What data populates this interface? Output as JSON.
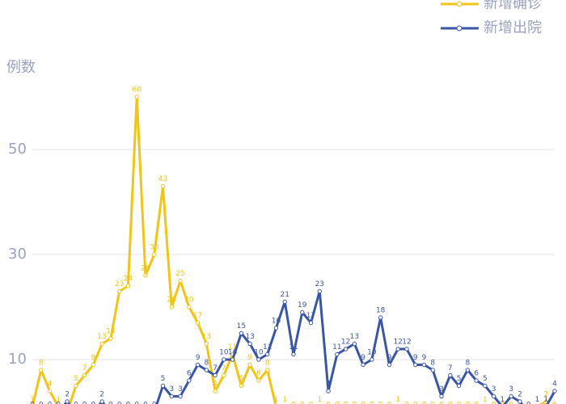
{
  "chart_data": {
    "type": "line",
    "y_label": "例数",
    "categories": [
      null,
      null,
      null,
      null,
      null,
      null,
      null,
      null,
      null,
      null,
      null,
      null,
      null,
      null,
      null,
      null,
      null,
      null,
      null,
      null,
      null,
      null,
      null,
      null,
      null,
      null,
      null,
      null,
      null,
      null,
      null,
      null,
      null,
      null,
      null,
      null,
      null,
      null,
      null,
      null,
      null,
      null,
      null,
      null,
      null,
      null,
      null,
      null,
      null,
      null,
      null,
      null,
      null,
      null,
      null,
      null,
      null,
      null,
      null,
      null,
      null
    ],
    "series": [
      {
        "name": "新增确诊",
        "color": "#f0c419",
        "values": [
          1,
          8,
          4,
          1,
          0,
          5,
          7,
          9,
          13,
          14,
          23,
          24,
          60,
          26,
          30,
          43,
          20,
          25,
          20,
          17,
          13,
          4,
          7,
          11,
          5,
          9,
          6,
          8,
          1,
          1,
          0,
          0,
          0,
          1,
          0,
          0,
          0,
          0,
          0,
          0,
          0,
          0,
          1,
          0,
          0,
          0,
          0,
          0,
          0,
          0,
          0,
          0,
          1,
          0,
          0,
          0,
          0,
          0,
          1,
          2,
          0
        ]
      },
      {
        "name": "新增出院",
        "color": "#3a56a5",
        "values": [
          0,
          0,
          0,
          0,
          2,
          0,
          0,
          0,
          2,
          0,
          0,
          0,
          0,
          0,
          0,
          5,
          3,
          3,
          6,
          9,
          8,
          7,
          10,
          10,
          15,
          13,
          10,
          11,
          16,
          21,
          11,
          19,
          17,
          23,
          4,
          11,
          12,
          13,
          9,
          10,
          18,
          9,
          12,
          12,
          9,
          9,
          8,
          3,
          7,
          5,
          8,
          6,
          5,
          3,
          1,
          3,
          2,
          0,
          1,
          1,
          4
        ]
      }
    ],
    "ylim": [
      0,
      60
    ],
    "yticks": [
      10,
      30,
      50
    ],
    "grid": true,
    "legend": "top-right"
  }
}
